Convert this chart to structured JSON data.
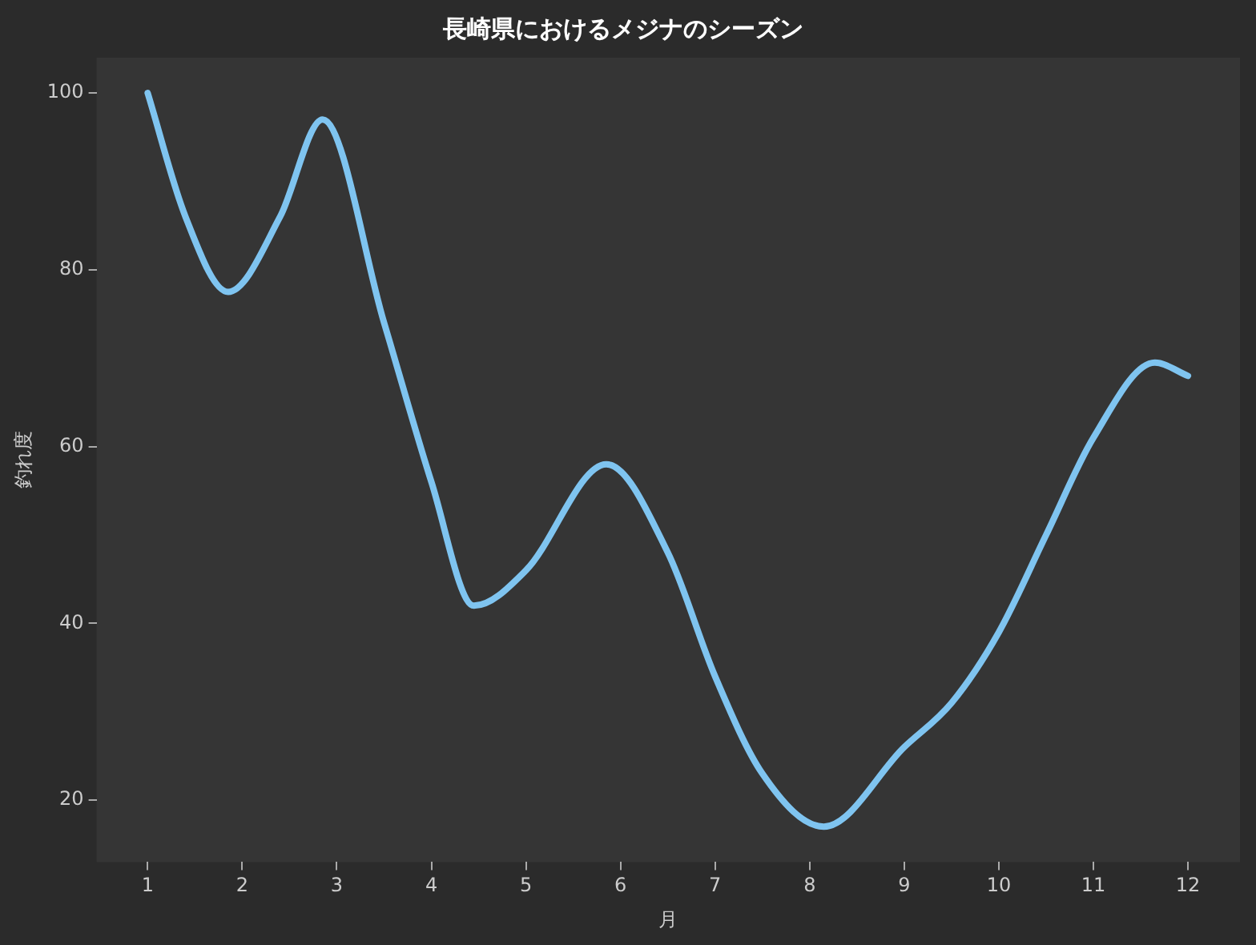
{
  "chart_data": {
    "type": "line",
    "title": "長崎県におけるメジナのシーズン",
    "xlabel": "月",
    "ylabel": "釣れ度",
    "series": [
      {
        "color": "#7fc4f0",
        "x": [
          1,
          1.4,
          1.85,
          2.4,
          2.85,
          3.5,
          4,
          4.45,
          5,
          5.85,
          6.5,
          7,
          7.5,
          8.15,
          9,
          9.5,
          10,
          10.5,
          11,
          11.65,
          12
        ],
        "values": [
          100,
          86,
          77.5,
          86,
          97,
          74,
          56,
          42,
          46,
          58,
          48,
          34,
          23,
          17,
          26,
          31,
          39,
          50,
          61,
          69.5,
          68
        ]
      }
    ],
    "xlim": [
      0.46,
      12.55
    ],
    "xticks": [
      1,
      2,
      3,
      4,
      5,
      6,
      7,
      8,
      9,
      10,
      11,
      12
    ],
    "ylim": [
      13,
      104
    ],
    "yticks": [
      20,
      40,
      60,
      80,
      100
    ],
    "grid": false,
    "legend": false,
    "marker": "none",
    "line_style": "solid"
  }
}
